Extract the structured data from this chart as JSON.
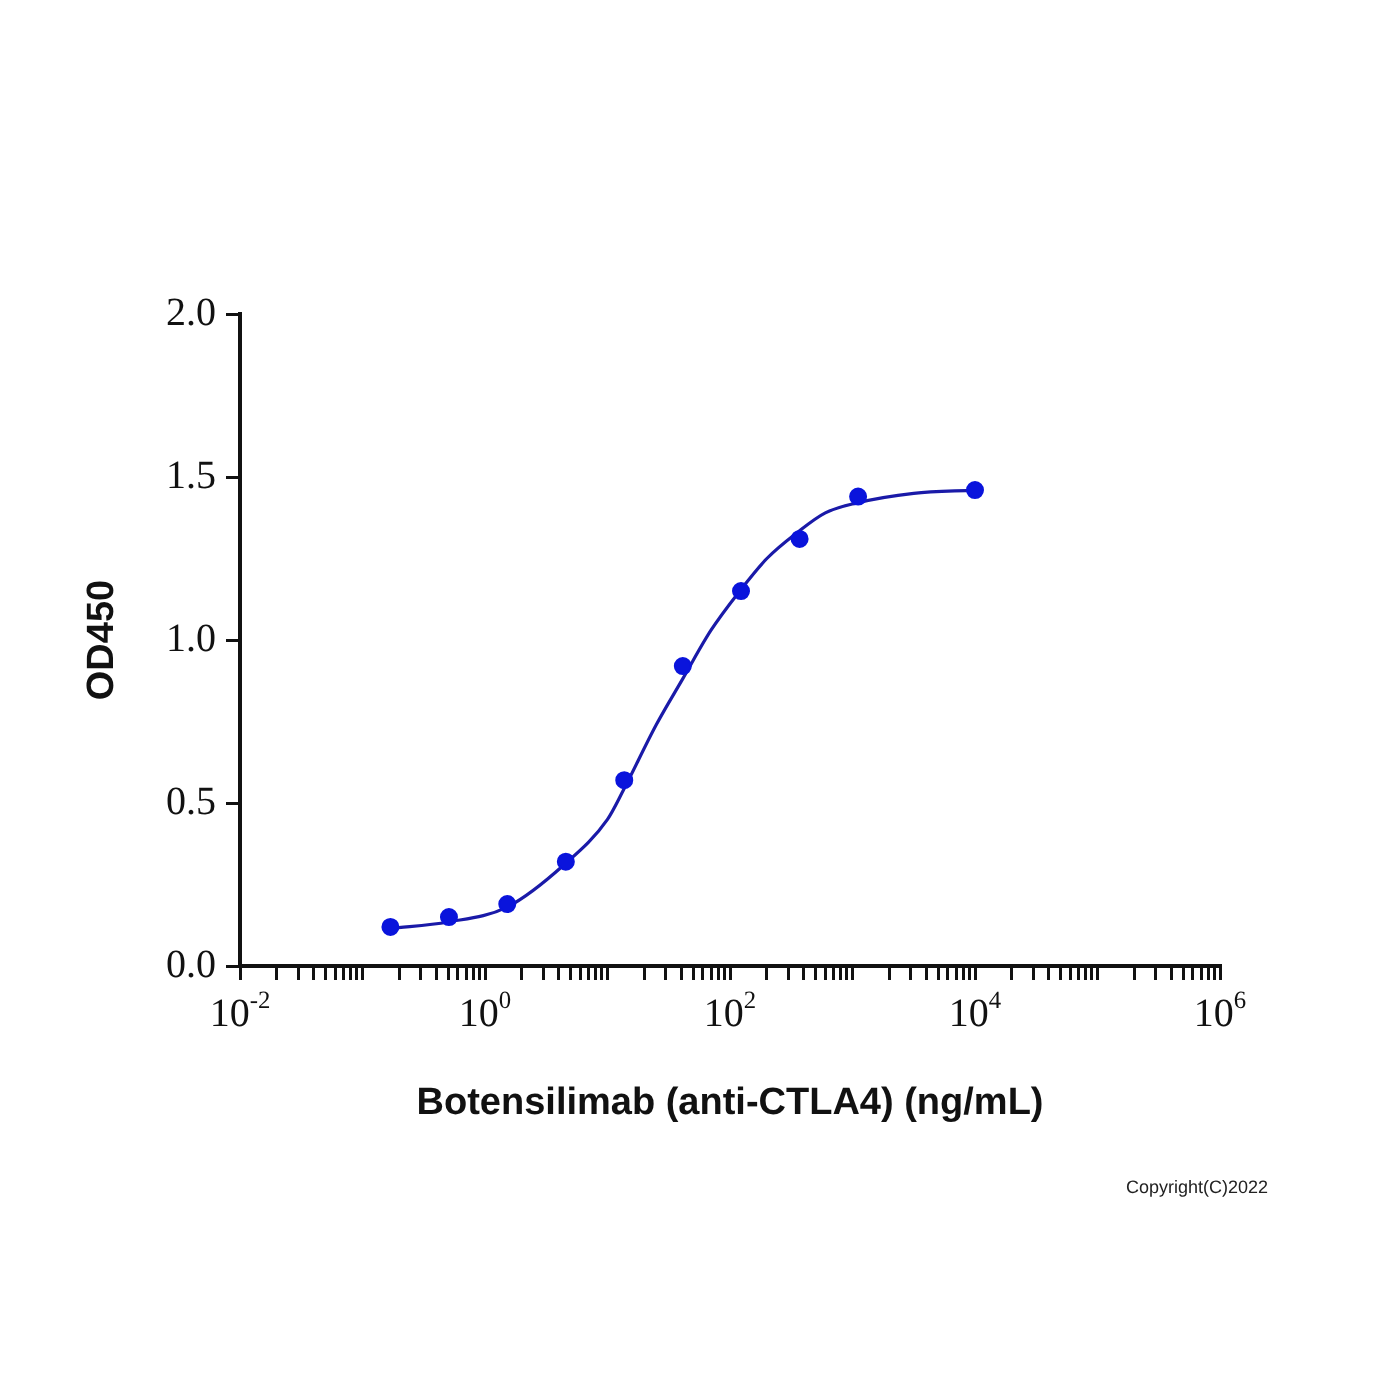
{
  "chart_data": {
    "type": "scatter",
    "xlabel": "Botensilimab (anti-CTLA4) (ng/mL)",
    "ylabel": "OD450",
    "annotations": [
      "Copyright(C)2022"
    ],
    "log": "x",
    "grid": false,
    "legend": false,
    "xlim": [
      0.01,
      1000000
    ],
    "xticks": [
      {
        "value": 0.01,
        "label": "10$^{-2}$"
      },
      {
        "value": 0.02,
        "label": null
      },
      {
        "value": 0.03,
        "label": null
      },
      {
        "value": 0.04,
        "label": null
      },
      {
        "value": 0.05,
        "label": null
      },
      {
        "value": 0.06,
        "label": null
      },
      {
        "value": 0.07,
        "label": null
      },
      {
        "value": 0.08,
        "label": null
      },
      {
        "value": 0.09,
        "label": null
      },
      {
        "value": 0.1,
        "label": null
      },
      {
        "value": 0.2,
        "label": null
      },
      {
        "value": 0.3,
        "label": null
      },
      {
        "value": 0.4,
        "label": null
      },
      {
        "value": 0.5,
        "label": null
      },
      {
        "value": 0.6,
        "label": null
      },
      {
        "value": 0.7,
        "label": null
      },
      {
        "value": 0.8,
        "label": null
      },
      {
        "value": 0.9,
        "label": null
      },
      {
        "value": 1,
        "label": "10$^{0}$"
      },
      {
        "value": 2,
        "label": null
      },
      {
        "value": 3,
        "label": null
      },
      {
        "value": 4,
        "label": null
      },
      {
        "value": 5,
        "label": null
      },
      {
        "value": 6,
        "label": null
      },
      {
        "value": 7,
        "label": null
      },
      {
        "value": 8,
        "label": null
      },
      {
        "value": 9,
        "label": null
      },
      {
        "value": 10,
        "label": null
      },
      {
        "value": 20,
        "label": null
      },
      {
        "value": 30,
        "label": null
      },
      {
        "value": 40,
        "label": null
      },
      {
        "value": 50,
        "label": null
      },
      {
        "value": 60,
        "label": null
      },
      {
        "value": 70,
        "label": null
      },
      {
        "value": 80,
        "label": null
      },
      {
        "value": 90,
        "label": null
      },
      {
        "value": 100,
        "label": "10$^{2}$"
      },
      {
        "value": 200,
        "label": null
      },
      {
        "value": 300,
        "label": null
      },
      {
        "value": 400,
        "label": null
      },
      {
        "value": 500,
        "label": null
      },
      {
        "value": 600,
        "label": null
      },
      {
        "value": 700,
        "label": null
      },
      {
        "value": 800,
        "label": null
      },
      {
        "value": 900,
        "label": null
      },
      {
        "value": 1000,
        "label": null
      },
      {
        "value": 2000,
        "label": null
      },
      {
        "value": 3000,
        "label": null
      },
      {
        "value": 4000,
        "label": null
      },
      {
        "value": 5000,
        "label": null
      },
      {
        "value": 6000,
        "label": null
      },
      {
        "value": 7000,
        "label": null
      },
      {
        "value": 8000,
        "label": null
      },
      {
        "value": 9000,
        "label": null
      },
      {
        "value": 10000,
        "label": "10$^{4}$"
      },
      {
        "value": 20000,
        "label": null
      },
      {
        "value": 30000,
        "label": null
      },
      {
        "value": 40000,
        "label": null
      },
      {
        "value": 50000,
        "label": null
      },
      {
        "value": 60000,
        "label": null
      },
      {
        "value": 70000,
        "label": null
      },
      {
        "value": 80000,
        "label": null
      },
      {
        "value": 90000,
        "label": null
      },
      {
        "value": 100000,
        "label": null
      },
      {
        "value": 200000,
        "label": null
      },
      {
        "value": 300000,
        "label": null
      },
      {
        "value": 400000,
        "label": null
      },
      {
        "value": 500000,
        "label": null
      },
      {
        "value": 600000,
        "label": null
      },
      {
        "value": 700000,
        "label": null
      },
      {
        "value": 800000,
        "label": null
      },
      {
        "value": 900000,
        "label": null
      },
      {
        "value": 1000000,
        "label": "10$^{6}$"
      }
    ],
    "ylim": [
      0,
      2
    ],
    "yticks": [
      {
        "value": 0,
        "label": "0.0"
      },
      {
        "value": 0.5,
        "label": "0.5"
      },
      {
        "value": 1,
        "label": "1.0"
      },
      {
        "value": 1.5,
        "label": "1.5"
      },
      {
        "value": 2,
        "label": "2.0"
      }
    ],
    "series": [
      {
        "marker": "circle",
        "color": "#0a14dc",
        "x": [
          0.169,
          0.508,
          1.52,
          4.57,
          13.7,
          41.2,
          123,
          370,
          1111,
          10000
        ],
        "values": [
          0.12,
          0.15,
          0.19,
          0.32,
          0.57,
          0.92,
          1.15,
          1.31,
          1.44,
          1.46
        ]
      },
      {
        "type": "line",
        "marker": "none",
        "line_style": "solid",
        "color": "#1a1aa8",
        "x": [
          0.169,
          0.5,
          1.5,
          4.4,
          10,
          13.5,
          25,
          41,
          70,
          120,
          200,
          355,
          600,
          1070,
          3160,
          10000
        ],
        "values": [
          0.115,
          0.135,
          0.18,
          0.31,
          0.45,
          0.54,
          0.74,
          0.88,
          1.03,
          1.15,
          1.25,
          1.33,
          1.39,
          1.42,
          1.45,
          1.46
        ]
      }
    ]
  }
}
